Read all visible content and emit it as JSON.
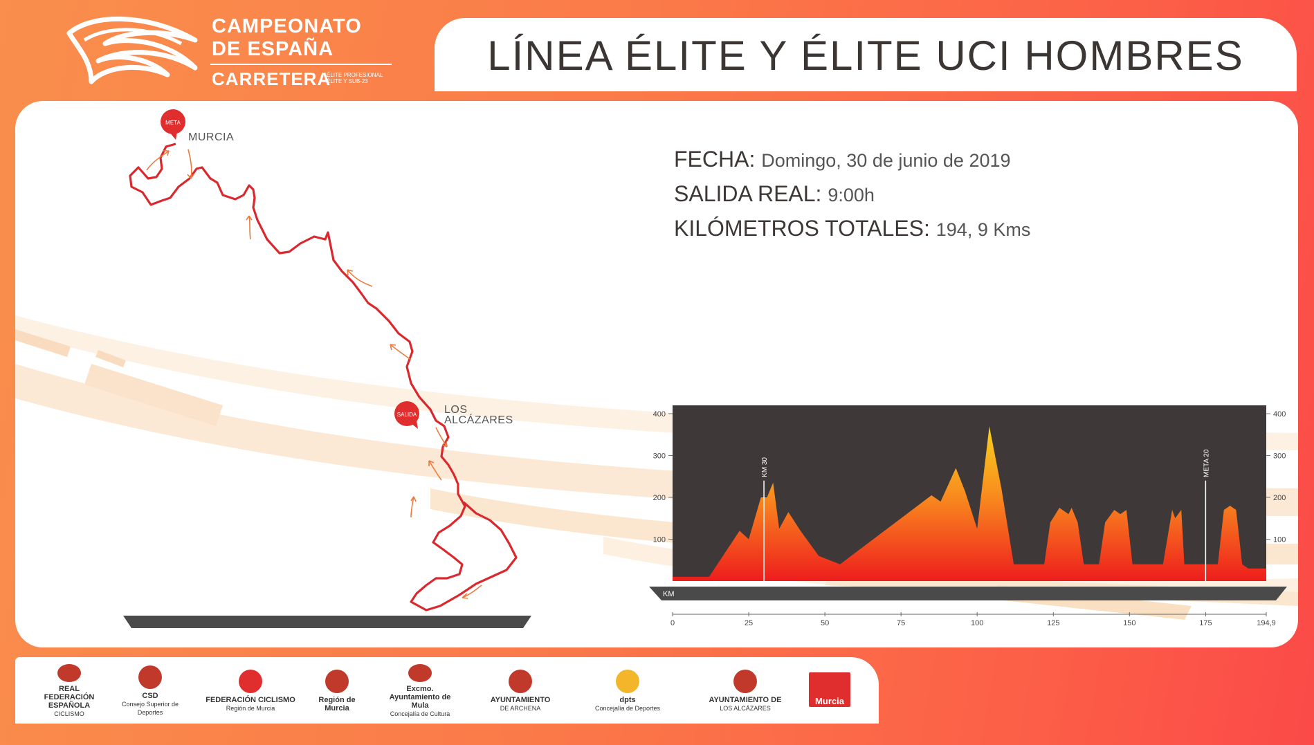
{
  "logo": {
    "line1": "CAMPEONATO",
    "line2": "DE ESPAÑA",
    "line3": "CARRETERA",
    "sub1": "ÉLITE PROFESIONAL",
    "sub2": "ÉLITE Y SUB-23"
  },
  "title": "LÍNEA ÉLITE Y ÉLITE UCI HOMBRES",
  "info": {
    "fecha_label": "FECHA:",
    "fecha_value": "Domingo, 30 de junio de 2019",
    "salida_label": "SALIDA REAL:",
    "salida_value": "9:00h",
    "km_label": "KILÓMETROS TOTALES:",
    "km_value": "194, 9 Kms"
  },
  "map": {
    "meta_pin": "META",
    "meta_place": "MURCIA",
    "salida_pin": "SALIDA",
    "salida_place_1": "LOS",
    "salida_place_2": "ALCÁZARES"
  },
  "chart_data": {
    "type": "area",
    "title": "",
    "xlabel": "KM",
    "ylabel": "",
    "xlim": [
      0,
      194.9
    ],
    "ylim": [
      0,
      400
    ],
    "x_ticks": [
      "0",
      "25",
      "50",
      "75",
      "100",
      "125",
      "150",
      "175",
      "194,9"
    ],
    "y_ticks": [
      "100",
      "200",
      "300",
      "400"
    ],
    "markers": [
      {
        "label": "KM 30",
        "x": 30
      },
      {
        "label": "META 20",
        "x": 175
      }
    ],
    "x": [
      0,
      12,
      22,
      25,
      29,
      31,
      33,
      35,
      38,
      42,
      48,
      55,
      65,
      75,
      85,
      88,
      93,
      96,
      100,
      104,
      108,
      112,
      116,
      122,
      124,
      127,
      130,
      131,
      133,
      135,
      140,
      142,
      145,
      147,
      149,
      151,
      154,
      158,
      161,
      164,
      165,
      167,
      168,
      170,
      172,
      175,
      177,
      179,
      181,
      183,
      185,
      187,
      189,
      192,
      194.9
    ],
    "y": [
      10,
      10,
      120,
      100,
      200,
      200,
      235,
      125,
      165,
      120,
      60,
      40,
      95,
      150,
      205,
      190,
      270,
      215,
      125,
      370,
      220,
      40,
      40,
      40,
      140,
      175,
      160,
      175,
      140,
      40,
      40,
      140,
      170,
      160,
      170,
      40,
      40,
      40,
      40,
      170,
      150,
      170,
      40,
      40,
      40,
      40,
      40,
      40,
      170,
      180,
      170,
      40,
      30,
      30,
      30
    ]
  },
  "sponsors": [
    {
      "name": "REAL FEDERACIÓN ESPAÑOLA",
      "sub": "CICLISMO"
    },
    {
      "name": "CSD",
      "sub": "Consejo Superior de Deportes"
    },
    {
      "name": "FEDERACIÓN CICLISMO",
      "sub": "Región de Murcia"
    },
    {
      "name": "Región de Murcia",
      "sub": ""
    },
    {
      "name": "Excmo. Ayuntamiento de Mula",
      "sub": "Concejalía de Cultura"
    },
    {
      "name": "AYUNTAMIENTO",
      "sub": "DE ARCHENA"
    },
    {
      "name": "dpts",
      "sub": "Concejalía de Deportes"
    },
    {
      "name": "AYUNTAMIENTO DE",
      "sub": "LOS ALCÁZARES"
    },
    {
      "name": "Murcia",
      "sub": ""
    }
  ],
  "colors": {
    "accent_red": "#e02d2d",
    "route_red": "#d9282e",
    "dark_band": "#4a4a4a",
    "chart_bg": "#3e3938"
  }
}
